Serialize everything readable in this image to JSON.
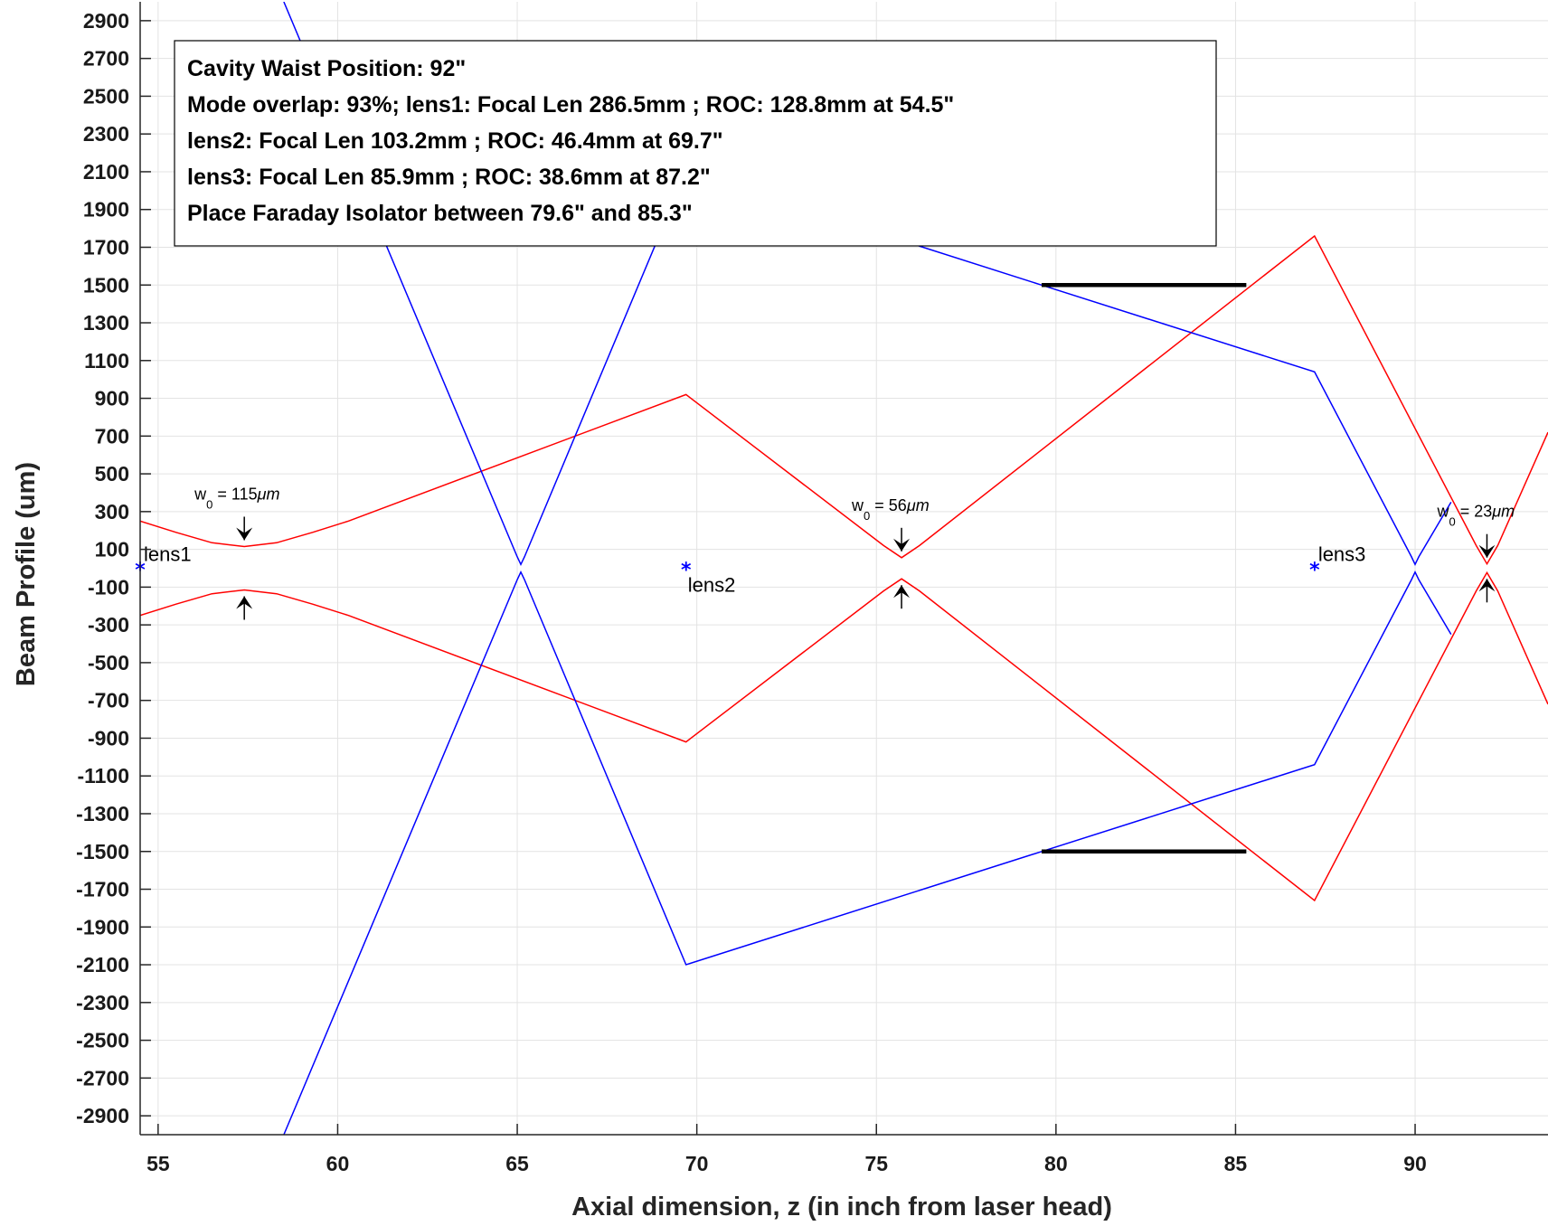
{
  "chart_data": {
    "type": "line",
    "xlabel": "Axial dimension, z (in inch from laser head)",
    "ylabel": "Beam Profile (um)",
    "xlim": [
      54.5,
      93.7
    ],
    "ylim": [
      -3000,
      3000
    ],
    "xticks": [
      55,
      60,
      65,
      70,
      75,
      80,
      85,
      90
    ],
    "yticks": [
      2900,
      2700,
      2500,
      2300,
      2100,
      1900,
      1700,
      1500,
      1300,
      1100,
      900,
      700,
      500,
      300,
      100,
      -100,
      -300,
      -500,
      -700,
      -900,
      -1100,
      -1300,
      -1500,
      -1700,
      -1900,
      -2100,
      -2300,
      -2500,
      -2700,
      -2900
    ],
    "grid": true,
    "annotation_lines": [
      "Cavity Waist Position: 92\"",
      "Mode overlap: 93%; lens1: Focal Len 286.5mm ; ROC: 128.8mm  at 54.5\"",
      "lens2: Focal Len 103.2mm ; ROC: 46.4mm  at 69.7\"",
      "lens3: Focal Len 85.9mm ; ROC: 38.6mm  at 87.2\"",
      "Place Faraday Isolator between 79.6\" and 85.3\""
    ],
    "lenses": [
      {
        "label": "lens1",
        "z": 54.5
      },
      {
        "label": "lens2",
        "z": 69.7
      },
      {
        "label": "lens3",
        "z": 87.2
      }
    ],
    "waists": [
      {
        "label_main": "w",
        "label_sub": "0",
        "label_rest": " = 115",
        "unit": "μm",
        "z": 57.4,
        "w": 115
      },
      {
        "label_main": "w",
        "label_sub": "0",
        "label_rest": " = 56",
        "unit": "μm",
        "z": 75.7,
        "w": 56
      },
      {
        "label_main": "w",
        "label_sub": "0",
        "label_rest": " = 23",
        "unit": "μm",
        "z": 92.0,
        "w": 23
      }
    ],
    "series": [
      {
        "color": "#ff0000",
        "upper": [
          [
            54.5,
            250
          ],
          [
            55.5,
            190
          ],
          [
            56.5,
            135
          ],
          [
            57.4,
            115
          ],
          [
            58.3,
            135
          ],
          [
            59.3,
            190
          ],
          [
            60.3,
            250
          ],
          [
            69.7,
            920
          ],
          [
            75.2,
            120
          ],
          [
            75.7,
            56
          ],
          [
            76.2,
            120
          ],
          [
            87.2,
            1760
          ],
          [
            91.7,
            120
          ],
          [
            92.0,
            23
          ],
          [
            92.3,
            120
          ],
          [
            93.7,
            720
          ]
        ],
        "lower": [
          [
            54.5,
            -250
          ],
          [
            55.5,
            -190
          ],
          [
            56.5,
            -135
          ],
          [
            57.4,
            -115
          ],
          [
            58.3,
            -135
          ],
          [
            59.3,
            -190
          ],
          [
            60.3,
            -250
          ],
          [
            69.7,
            -920
          ],
          [
            75.2,
            -120
          ],
          [
            75.7,
            -56
          ],
          [
            76.2,
            -120
          ],
          [
            87.2,
            -1760
          ],
          [
            91.7,
            -120
          ],
          [
            92.0,
            -23
          ],
          [
            92.3,
            -120
          ],
          [
            93.7,
            -720
          ]
        ]
      },
      {
        "color": "#0000ff",
        "upper": [
          [
            58.5,
            3000
          ],
          [
            65.0,
            60
          ],
          [
            65.1,
            20
          ],
          [
            65.2,
            60
          ],
          [
            69.7,
            2100
          ],
          [
            79.6,
            1500
          ],
          [
            87.2,
            1040
          ],
          [
            89.9,
            60
          ],
          [
            90.0,
            20
          ],
          [
            90.1,
            60
          ],
          [
            91.0,
            350
          ]
        ],
        "lower": [
          [
            58.5,
            -3000
          ],
          [
            65.0,
            -60
          ],
          [
            65.1,
            -20
          ],
          [
            65.2,
            -60
          ],
          [
            69.7,
            -2100
          ],
          [
            79.6,
            -1500
          ],
          [
            87.2,
            -1040
          ],
          [
            89.9,
            -60
          ],
          [
            90.0,
            -20
          ],
          [
            90.1,
            -60
          ],
          [
            91.0,
            -350
          ]
        ]
      }
    ],
    "isolator_bars": [
      {
        "x1": 79.6,
        "x2": 85.3,
        "y": 1500
      },
      {
        "x1": 79.6,
        "x2": 85.3,
        "y": -1500
      }
    ]
  }
}
